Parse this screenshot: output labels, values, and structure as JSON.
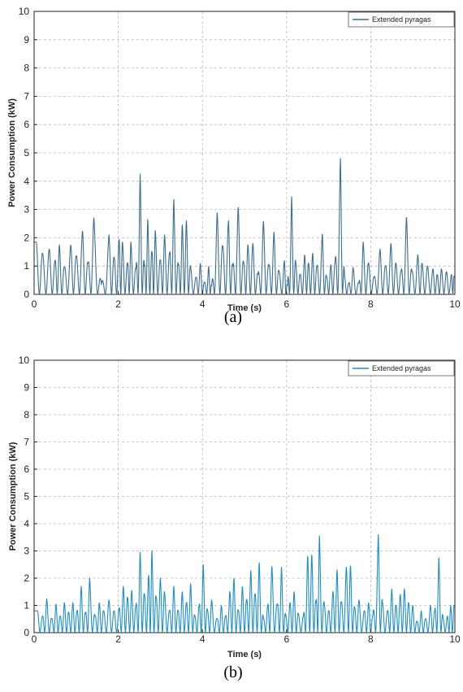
{
  "chart_data": [
    {
      "type": "line",
      "panel_label": "(a)",
      "xlabel": "Time (s)",
      "ylabel": "Power Consumption (kW)",
      "xlim": [
        0,
        10
      ],
      "ylim": [
        0,
        10
      ],
      "xticks": [
        0,
        2,
        4,
        6,
        8,
        10
      ],
      "yticks": [
        0,
        1,
        2,
        3,
        4,
        5,
        6,
        7,
        8,
        9,
        10
      ],
      "grid": true,
      "legend_position": "top-right",
      "series": [
        {
          "name": "Extended pyragas",
          "color": "#3d6f8f",
          "peaks": [
            [
              0.05,
              1.85
            ],
            [
              0.2,
              1.45
            ],
            [
              0.36,
              1.6
            ],
            [
              0.5,
              1.2
            ],
            [
              0.6,
              1.75
            ],
            [
              0.72,
              0.95
            ],
            [
              0.87,
              1.75
            ],
            [
              1.0,
              1.35
            ],
            [
              1.15,
              2.25
            ],
            [
              1.28,
              1.1
            ],
            [
              1.42,
              2.7
            ],
            [
              1.6,
              0.35
            ],
            [
              1.78,
              2.1
            ],
            [
              1.9,
              1.3
            ],
            [
              2.02,
              1.95
            ],
            [
              2.1,
              1.85
            ],
            [
              2.22,
              1.1
            ],
            [
              2.3,
              1.85
            ],
            [
              2.42,
              0.9
            ],
            [
              2.52,
              4.25
            ],
            [
              2.62,
              1.0
            ],
            [
              2.7,
              2.65
            ],
            [
              2.8,
              1.5
            ],
            [
              2.88,
              2.25
            ],
            [
              3.0,
              1.2
            ],
            [
              3.1,
              2.1
            ],
            [
              3.22,
              1.45
            ],
            [
              3.32,
              3.35
            ],
            [
              3.43,
              1.0
            ],
            [
              3.52,
              2.45
            ],
            [
              3.62,
              2.6
            ],
            [
              3.72,
              0.95
            ],
            [
              3.85,
              0.6
            ],
            [
              3.95,
              1.1
            ],
            [
              4.05,
              0.4
            ],
            [
              4.15,
              1.0
            ],
            [
              4.22,
              0.3
            ],
            [
              4.35,
              2.9
            ],
            [
              4.48,
              1.7
            ],
            [
              4.62,
              2.6
            ],
            [
              4.72,
              1.0
            ],
            [
              4.85,
              3.1
            ],
            [
              4.98,
              1.1
            ],
            [
              5.08,
              1.75
            ],
            [
              5.2,
              1.8
            ],
            [
              5.32,
              0.7
            ],
            [
              5.45,
              2.6
            ],
            [
              5.58,
              1.0
            ],
            [
              5.7,
              2.2
            ],
            [
              5.82,
              0.8
            ],
            [
              5.95,
              1.2
            ],
            [
              6.02,
              0.3
            ],
            [
              6.12,
              3.45
            ],
            [
              6.22,
              1.1
            ],
            [
              6.32,
              0.7
            ],
            [
              6.43,
              1.4
            ],
            [
              6.52,
              1.1
            ],
            [
              6.62,
              1.45
            ],
            [
              6.72,
              1.0
            ],
            [
              6.85,
              2.15
            ],
            [
              6.95,
              0.6
            ],
            [
              7.05,
              1.05
            ],
            [
              7.15,
              1.1
            ],
            [
              7.28,
              4.8
            ],
            [
              7.38,
              0.6
            ],
            [
              7.48,
              0.4
            ],
            [
              7.58,
              0.95
            ],
            [
              7.72,
              0.4
            ],
            [
              7.82,
              1.85
            ],
            [
              7.95,
              1.1
            ],
            [
              8.08,
              0.6
            ],
            [
              8.22,
              1.6
            ],
            [
              8.35,
              1.0
            ],
            [
              8.48,
              1.8
            ],
            [
              8.6,
              1.1
            ],
            [
              8.72,
              0.8
            ],
            [
              8.85,
              2.75
            ],
            [
              8.98,
              0.8
            ],
            [
              9.12,
              1.4
            ],
            [
              9.22,
              1.1
            ],
            [
              9.35,
              1.0
            ],
            [
              9.48,
              0.9
            ],
            [
              9.58,
              0.7
            ],
            [
              9.68,
              0.9
            ],
            [
              9.8,
              0.8
            ],
            [
              9.92,
              0.7
            ],
            [
              9.98,
              0.65
            ]
          ]
        }
      ]
    },
    {
      "type": "line",
      "panel_label": "(b)",
      "xlabel": "Time (s)",
      "ylabel": "Power Consumption (kW)",
      "xlim": [
        0,
        10
      ],
      "ylim": [
        0,
        10
      ],
      "xticks": [
        0,
        2,
        4,
        6,
        8,
        10
      ],
      "yticks": [
        0,
        1,
        2,
        3,
        4,
        5,
        6,
        7,
        8,
        9,
        10
      ],
      "grid": true,
      "legend_position": "top-right",
      "series": [
        {
          "name": "Extended pyragas",
          "color": "#1f8fc0",
          "peaks": [
            [
              0.08,
              0.8
            ],
            [
              0.2,
              0.6
            ],
            [
              0.3,
              1.25
            ],
            [
              0.42,
              0.5
            ],
            [
              0.52,
              1.05
            ],
            [
              0.62,
              0.6
            ],
            [
              0.72,
              1.1
            ],
            [
              0.82,
              0.75
            ],
            [
              0.92,
              1.1
            ],
            [
              1.02,
              0.8
            ],
            [
              1.12,
              1.7
            ],
            [
              1.22,
              0.7
            ],
            [
              1.32,
              2.0
            ],
            [
              1.45,
              0.6
            ],
            [
              1.55,
              1.1
            ],
            [
              1.65,
              0.8
            ],
            [
              1.78,
              1.2
            ],
            [
              1.9,
              0.8
            ],
            [
              2.02,
              0.9
            ],
            [
              2.12,
              1.7
            ],
            [
              2.22,
              1.3
            ],
            [
              2.32,
              1.55
            ],
            [
              2.42,
              1.0
            ],
            [
              2.52,
              2.95
            ],
            [
              2.62,
              1.4
            ],
            [
              2.72,
              2.1
            ],
            [
              2.8,
              3.0
            ],
            [
              2.9,
              1.3
            ],
            [
              3.0,
              2.0
            ],
            [
              3.1,
              1.5
            ],
            [
              3.22,
              0.8
            ],
            [
              3.32,
              1.7
            ],
            [
              3.42,
              0.8
            ],
            [
              3.52,
              1.5
            ],
            [
              3.62,
              1.1
            ],
            [
              3.72,
              1.8
            ],
            [
              3.82,
              0.6
            ],
            [
              3.92,
              1.0
            ],
            [
              4.02,
              2.5
            ],
            [
              4.12,
              0.8
            ],
            [
              4.22,
              1.2
            ],
            [
              4.35,
              0.5
            ],
            [
              4.45,
              1.0
            ],
            [
              4.55,
              0.6
            ],
            [
              4.65,
              1.5
            ],
            [
              4.75,
              2.0
            ],
            [
              4.85,
              0.8
            ],
            [
              4.95,
              1.7
            ],
            [
              5.05,
              1.2
            ],
            [
              5.15,
              2.3
            ],
            [
              5.25,
              1.4
            ],
            [
              5.35,
              2.6
            ],
            [
              5.45,
              0.5
            ],
            [
              5.55,
              1.0
            ],
            [
              5.65,
              2.45
            ],
            [
              5.78,
              1.0
            ],
            [
              5.88,
              2.4
            ],
            [
              5.98,
              0.6
            ],
            [
              6.08,
              1.1
            ],
            [
              6.18,
              1.5
            ],
            [
              6.28,
              0.7
            ],
            [
              6.4,
              0.6
            ],
            [
              6.5,
              2.8
            ],
            [
              6.6,
              2.85
            ],
            [
              6.7,
              1.1
            ],
            [
              6.78,
              3.55
            ],
            [
              6.9,
              1.0
            ],
            [
              7.0,
              0.8
            ],
            [
              7.1,
              1.5
            ],
            [
              7.2,
              2.3
            ],
            [
              7.3,
              1.1
            ],
            [
              7.42,
              2.4
            ],
            [
              7.52,
              2.45
            ],
            [
              7.62,
              0.9
            ],
            [
              7.72,
              1.2
            ],
            [
              7.85,
              0.8
            ],
            [
              7.95,
              1.1
            ],
            [
              8.05,
              0.6
            ],
            [
              8.18,
              3.6
            ],
            [
              8.28,
              1.1
            ],
            [
              8.4,
              0.8
            ],
            [
              8.5,
              1.6
            ],
            [
              8.6,
              1.0
            ],
            [
              8.7,
              1.4
            ],
            [
              8.8,
              1.6
            ],
            [
              8.9,
              1.1
            ],
            [
              9.0,
              1.0
            ],
            [
              9.1,
              0.4
            ],
            [
              9.2,
              0.8
            ],
            [
              9.3,
              0.5
            ],
            [
              9.42,
              1.0
            ],
            [
              9.52,
              0.8
            ],
            [
              9.62,
              2.75
            ],
            [
              9.72,
              0.5
            ],
            [
              9.82,
              0.6
            ],
            [
              9.9,
              1.0
            ],
            [
              9.98,
              1.0
            ]
          ]
        }
      ]
    }
  ]
}
